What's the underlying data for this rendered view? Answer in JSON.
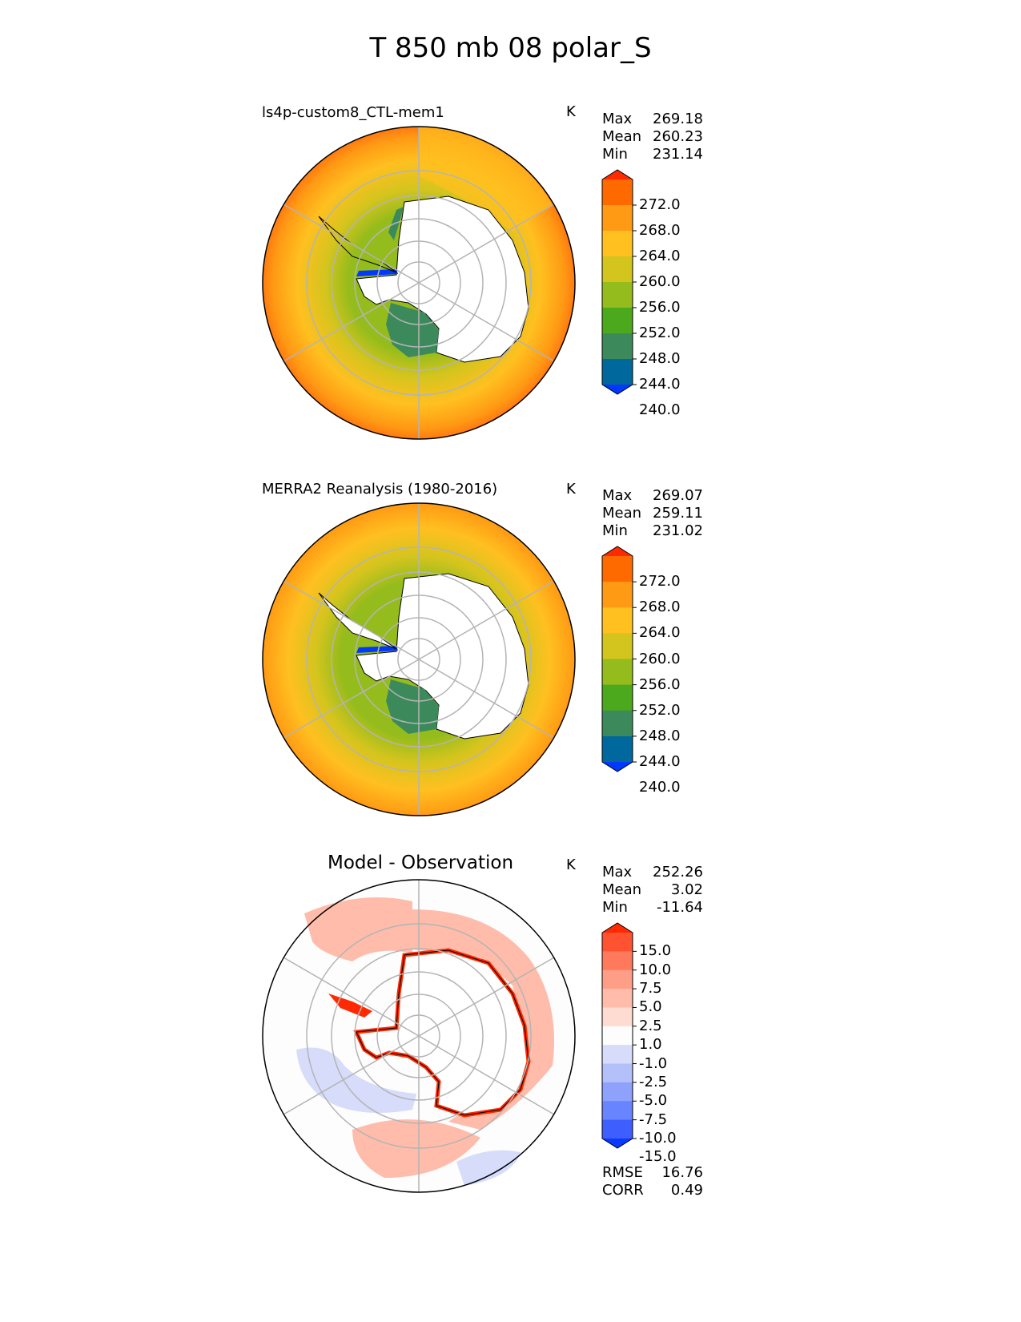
{
  "figure": {
    "title": "T 850 mb 08 polar_S",
    "unit": "K"
  },
  "panels": [
    {
      "title": "ls4p-custom8_CTL-mem1",
      "unit": "K",
      "stats": [
        {
          "label": "Max",
          "value": "269.18"
        },
        {
          "label": "Mean",
          "value": "260.23"
        },
        {
          "label": "Min",
          "value": "231.14"
        }
      ]
    },
    {
      "title": "MERRA2 Reanalysis (1980-2016)",
      "unit": "K",
      "stats": [
        {
          "label": "Max",
          "value": "269.07"
        },
        {
          "label": "Mean",
          "value": "259.11"
        },
        {
          "label": "Min",
          "value": "231.02"
        }
      ]
    },
    {
      "title": "Model - Observation",
      "unit": "K",
      "stats": [
        {
          "label": "Max",
          "value": "252.26"
        },
        {
          "label": "Mean",
          "value": "3.02"
        },
        {
          "label": "Min",
          "value": "-11.64"
        }
      ],
      "metrics": [
        {
          "label": "RMSE",
          "value": "16.76"
        },
        {
          "label": "CORR",
          "value": "0.49"
        }
      ]
    }
  ],
  "colorbars": {
    "field": {
      "ticks": [
        "272.0",
        "268.0",
        "264.0",
        "260.0",
        "256.0",
        "252.0",
        "248.0",
        "244.0",
        "240.0"
      ],
      "colors": [
        "#ff2a00",
        "#ff6a00",
        "#ff9a14",
        "#ffc020",
        "#d4c41e",
        "#94bc1c",
        "#4ca81c",
        "#3c8a5c",
        "#00689c",
        "#0038ff"
      ]
    },
    "diff": {
      "ticks": [
        "15.0",
        "10.0",
        "7.5",
        "5.0",
        "2.5",
        "1.0",
        "-1.0",
        "-2.5",
        "-5.0",
        "-7.5",
        "-10.0",
        "-15.0"
      ],
      "colors": [
        "#ff2a00",
        "#ff5230",
        "#ff7a5c",
        "#ff9e86",
        "#ffbcaa",
        "#ffdcd2",
        "#fdfdfd",
        "#d6dcfa",
        "#b4c0fa",
        "#8ea2fc",
        "#6884fe",
        "#3e5efe",
        "#0a38ff"
      ]
    }
  },
  "chart_data": [
    {
      "type": "heatmap",
      "projection": "south-polar-stereographic",
      "title": "ls4p-custom8_CTL-mem1",
      "variable": "T 850 mb",
      "unit": "K",
      "max": 269.18,
      "mean": 260.23,
      "min": 231.14,
      "levels": [
        240,
        244,
        248,
        252,
        256,
        260,
        264,
        268,
        272
      ],
      "extend": "both"
    },
    {
      "type": "heatmap",
      "projection": "south-polar-stereographic",
      "title": "MERRA2 Reanalysis (1980-2016)",
      "variable": "T 850 mb",
      "unit": "K",
      "max": 269.07,
      "mean": 259.11,
      "min": 231.02,
      "levels": [
        240,
        244,
        248,
        252,
        256,
        260,
        264,
        268,
        272
      ],
      "extend": "both"
    },
    {
      "type": "heatmap",
      "projection": "south-polar-stereographic",
      "title": "Model - Observation",
      "unit": "K",
      "max": 252.26,
      "mean": 3.02,
      "min": -11.64,
      "rmse": 16.76,
      "corr": 0.49,
      "levels": [
        -15,
        -10,
        -7.5,
        -5,
        -2.5,
        -1,
        1,
        2.5,
        5,
        7.5,
        10,
        15
      ],
      "extend": "both"
    }
  ]
}
